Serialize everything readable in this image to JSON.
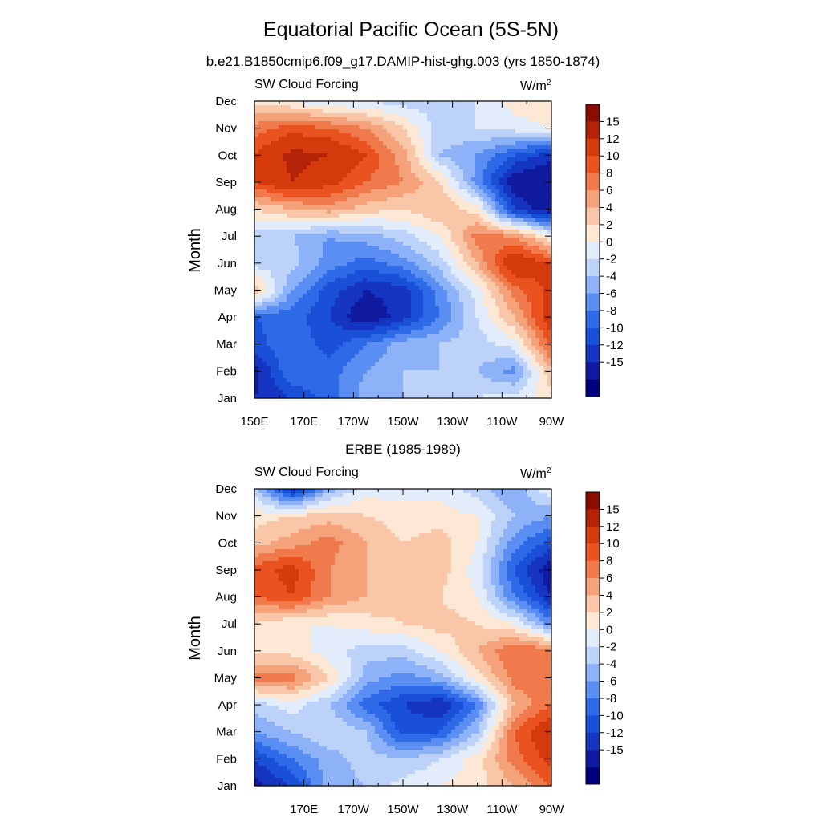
{
  "title": "Equatorial Pacific Ocean (5S-5N)",
  "subtitle": "b.e21.B1850cmip6.f09_g17.DAMIP-hist-ghg.003 (yrs 1850-1874)",
  "panel2_title": "ERBE (1985-1989)",
  "chart_data": [
    {
      "type": "heatmap",
      "variable": "SW Cloud Forcing",
      "units_base": "W/m",
      "units_exp": "2",
      "ylabel": "Month",
      "months": [
        "Jan",
        "Feb",
        "Mar",
        "Apr",
        "May",
        "Jun",
        "Jul",
        "Aug",
        "Sep",
        "Oct",
        "Nov",
        "Dec"
      ],
      "x_ticks": [
        "150E",
        "170E",
        "170W",
        "150W",
        "130W",
        "110W",
        "90W"
      ],
      "x_tick_lons": [
        150,
        170,
        190,
        210,
        230,
        250,
        270
      ],
      "xlim": [
        150,
        270
      ],
      "x": [
        150,
        165,
        180,
        195,
        210,
        225,
        240,
        255,
        270
      ],
      "z": [
        [
          -12,
          -10,
          -7,
          -3,
          -2,
          -1,
          0,
          1,
          3
        ],
        [
          -13,
          -6,
          -7,
          -4,
          -2,
          -2,
          -2,
          -5,
          6
        ],
        [
          -9,
          -6,
          -9,
          -6,
          -3,
          -2,
          -1,
          1,
          11
        ],
        [
          -8,
          -7,
          -10,
          -14,
          -11,
          -6,
          0,
          6,
          14
        ],
        [
          6,
          -4,
          -9,
          -12,
          -11,
          -5,
          1,
          9,
          13
        ],
        [
          -1,
          -1,
          -5,
          -7,
          -5,
          -1,
          6,
          15,
          12
        ],
        [
          -1,
          -2,
          -4,
          -3,
          -1,
          2,
          9,
          8,
          2
        ],
        [
          4,
          6,
          7,
          5,
          4,
          6,
          3,
          -10,
          -14
        ],
        [
          12,
          15,
          13,
          10,
          8,
          4,
          -5,
          -14,
          -15
        ],
        [
          12,
          16,
          15,
          12,
          7,
          -2,
          -4,
          -8,
          -11
        ],
        [
          9,
          11,
          10,
          8,
          4,
          -1,
          0,
          1,
          2
        ],
        [
          3,
          2,
          0,
          0,
          -1,
          -1,
          0,
          3,
          4
        ]
      ]
    },
    {
      "type": "heatmap",
      "variable": "SW Cloud Forcing",
      "units_base": "W/m",
      "units_exp": "2",
      "ylabel": "Month",
      "months": [
        "Jan",
        "Feb",
        "Mar",
        "Apr",
        "May",
        "Jun",
        "Jul",
        "Aug",
        "Sep",
        "Oct",
        "Nov",
        "Dec"
      ],
      "x_ticks": [
        "170E",
        "170W",
        "150W",
        "130W",
        "110W",
        "90W"
      ],
      "x_tick_lons": [
        170,
        190,
        210,
        230,
        250,
        270
      ],
      "xlim": [
        150,
        270
      ],
      "x": [
        150,
        165,
        180,
        195,
        210,
        225,
        240,
        255,
        270
      ],
      "z": [
        [
          -13,
          -10,
          -3,
          -2,
          1,
          2,
          3,
          6,
          10
        ],
        [
          -10,
          -6,
          -3,
          -1,
          -2,
          0,
          3,
          9,
          13
        ],
        [
          -4,
          -2,
          0,
          -2,
          -9,
          -8,
          -2,
          10,
          15
        ],
        [
          -1,
          1,
          -2,
          -7,
          -10,
          -12,
          -6,
          6,
          10
        ],
        [
          9,
          9,
          4,
          -3,
          -5,
          -3,
          3,
          9,
          10
        ],
        [
          3,
          3,
          1,
          -1,
          -1,
          2,
          6,
          10,
          9
        ],
        [
          4,
          2,
          2,
          3,
          4,
          5,
          4,
          2,
          -5
        ],
        [
          10,
          12,
          8,
          6,
          5,
          4,
          2,
          -6,
          -12
        ],
        [
          11,
          13,
          8,
          6,
          5,
          5,
          1,
          -8,
          -14
        ],
        [
          5,
          7,
          9,
          6,
          4,
          5,
          2,
          -5,
          -9
        ],
        [
          3,
          4,
          5,
          4,
          3,
          3,
          2,
          -2,
          -4
        ],
        [
          -1,
          -12,
          -3,
          1,
          1,
          1,
          -1,
          -4,
          2
        ]
      ]
    }
  ],
  "colorbar": {
    "colors": [
      "#00007f",
      "#0f1a9e",
      "#1535c0",
      "#1a4fd8",
      "#2e6ae8",
      "#5a8ef2",
      "#8eb2f7",
      "#bcd2f8",
      "#e2ecfb",
      "#fde8d6",
      "#f9c6a8",
      "#f5a27a",
      "#f07a4c",
      "#ea5320",
      "#d43a0c",
      "#b42208",
      "#8a0d03"
    ],
    "levels": [
      -15,
      -12,
      -10,
      -8,
      -6,
      -4,
      -2,
      0,
      2,
      4,
      6,
      8,
      10,
      12,
      15
    ],
    "labels": [
      "15",
      "12",
      "10",
      "8",
      "6",
      "4",
      "2",
      "0",
      "-2",
      "-4",
      "-6",
      "-8",
      "-10",
      "-12",
      "-15"
    ]
  }
}
